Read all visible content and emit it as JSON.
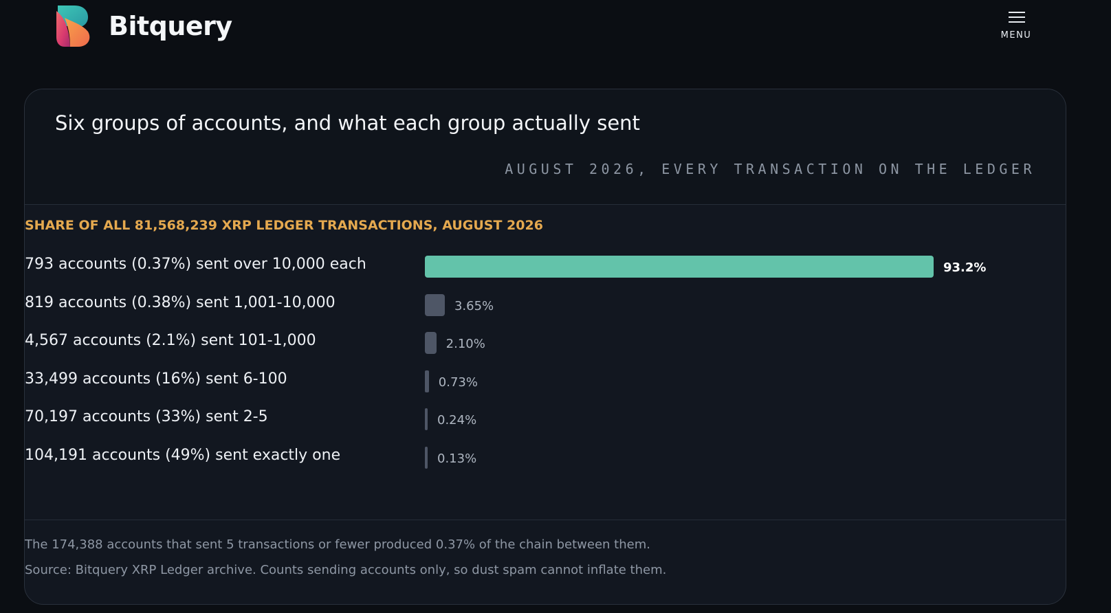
{
  "header": {
    "brand_name": "Bitquery",
    "menu_label": "MENU",
    "logo_icon": "bitquery-logo",
    "menu_icon": "hamburger-icon"
  },
  "card": {
    "title": "Six groups of accounts, and what each group actually sent",
    "kicker": "AUGUST 2026, EVERY TRANSACTION ON THE LEDGER",
    "footnote": "The 174,388 accounts that sent 5 transactions or fewer produced 0.37% of the chain between them.",
    "source": "Source: Bitquery XRP Ledger archive. Counts sending accounts only, so dust spam cannot inflate them."
  },
  "colors": {
    "page_background": "#0b0e13",
    "card_background": "#121720",
    "lead_bar": "#63c3aa",
    "other_bars": "#4e5666",
    "accent_title": "#e5a94f"
  },
  "chart_data": {
    "type": "bar",
    "orientation": "horizontal",
    "title": "SHARE OF ALL 81,568,239 XRP LEDGER TRANSACTIONS, AUGUST 2026",
    "categories": [
      "793 accounts (0.37%) sent over 10,000 each",
      "819 accounts (0.38%) sent 1,001-10,000",
      "4,567 accounts (2.1%) sent 101-1,000",
      "33,499 accounts (16%) sent 6-100",
      "70,197 accounts (33%) sent 2-5",
      "104,191 accounts (49%) sent exactly one"
    ],
    "values": [
      93.2,
      3.65,
      2.1,
      0.73,
      0.24,
      0.13
    ],
    "value_labels": [
      "93.2%",
      "3.65%",
      "2.10%",
      "0.73%",
      "0.24%",
      "0.13%"
    ],
    "unit": "%",
    "xlim": [
      0,
      93.2
    ],
    "grid": false,
    "legend": "none"
  }
}
